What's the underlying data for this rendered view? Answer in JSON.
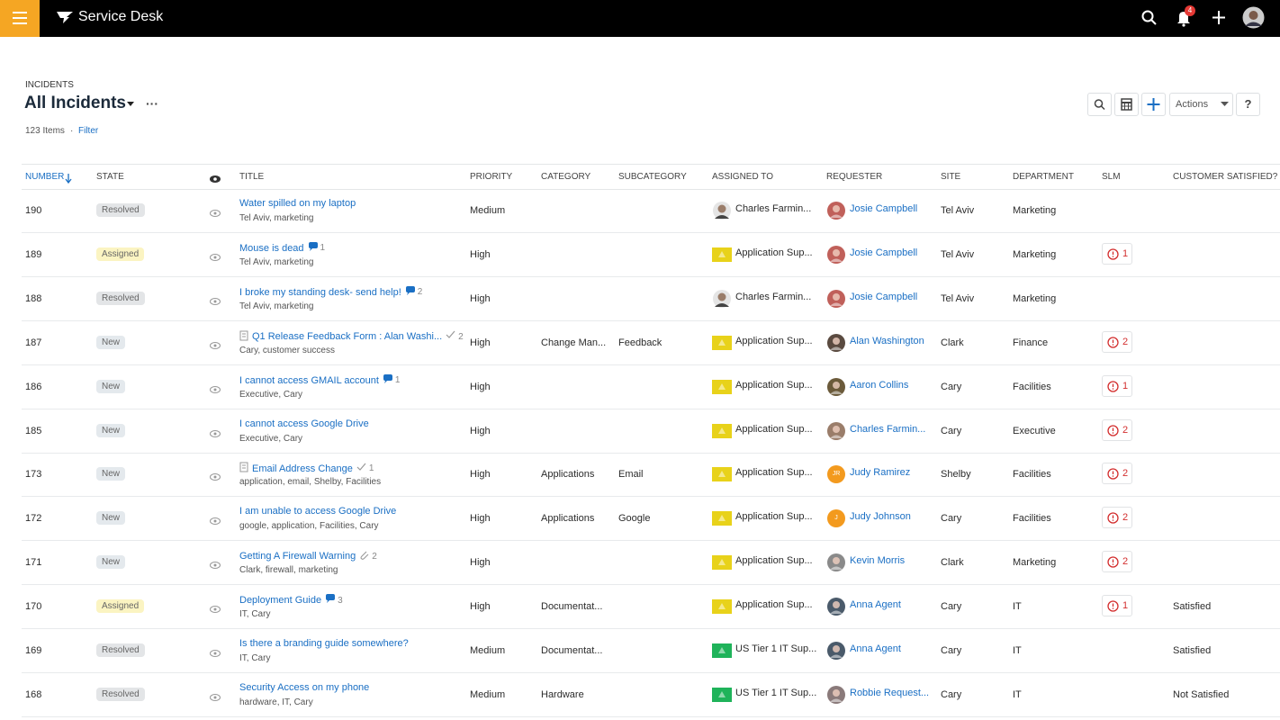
{
  "header": {
    "app_name": "Service Desk",
    "notification_count": "4"
  },
  "breadcrumb": "INCIDENTS",
  "view_title": "All Incidents",
  "more": "···",
  "item_count": "123 Items",
  "separator": "·",
  "filter": "Filter",
  "toolbar": {
    "actions": "Actions",
    "help": "?"
  },
  "table": {
    "columns": [
      "NUMBER",
      "STATE",
      "TITLE",
      "PRIORITY",
      "CATEGORY",
      "SUBCATEGORY",
      "ASSIGNED TO",
      "REQUESTER",
      "SITE",
      "DEPARTMENT",
      "SLM",
      "CUSTOMER SATISFIED?"
    ],
    "rows": [
      {
        "number": "190",
        "state": "Resolved",
        "state_color": "#e3e5e7",
        "title": "Water spilled on my laptop",
        "form": false,
        "badge": null,
        "tags": "Tel Aviv, marketing",
        "priority": "Medium",
        "category": null,
        "subcategory": null,
        "assigned_to": "Charles Farmin...",
        "assigned_icon": {
          "kind": "person",
          "color": "#9a7d6a"
        },
        "requester": "Josie Campbell",
        "requester_avatar": {
          "color": "#c0605a",
          "initials": null
        },
        "site": "Tel Aviv",
        "department": "Marketing",
        "slm": null,
        "customer_satisfied": null
      },
      {
        "number": "189",
        "state": "Assigned",
        "state_color": "#fbf4c2",
        "title": "Mouse is dead",
        "form": false,
        "badge": {
          "icon": "comment",
          "count": "1"
        },
        "tags": "Tel Aviv, marketing",
        "priority": "High",
        "category": null,
        "subcategory": null,
        "assigned_to": "Application Sup...",
        "assigned_icon": {
          "kind": "flag",
          "color": "#e8d21a"
        },
        "requester": "Josie Campbell",
        "requester_avatar": {
          "color": "#c0605a",
          "initials": null
        },
        "site": "Tel Aviv",
        "department": "Marketing",
        "slm": "1",
        "customer_satisfied": null
      },
      {
        "number": "188",
        "state": "Resolved",
        "state_color": "#e3e5e7",
        "title": "I broke my standing desk- send help!",
        "form": false,
        "badge": {
          "icon": "comment",
          "count": "2"
        },
        "tags": "Tel Aviv, marketing",
        "priority": "High",
        "category": null,
        "subcategory": null,
        "assigned_to": "Charles Farmin...",
        "assigned_icon": {
          "kind": "person",
          "color": "#9a7d6a"
        },
        "requester": "Josie Campbell",
        "requester_avatar": {
          "color": "#c0605a",
          "initials": null
        },
        "site": "Tel Aviv",
        "department": "Marketing",
        "slm": null,
        "customer_satisfied": null
      },
      {
        "number": "187",
        "state": "New",
        "state_color": "#e4e9ed",
        "title": "Q1 Release Feedback Form : Alan Washi...",
        "form": true,
        "badge": {
          "icon": "check",
          "count": "2"
        },
        "tags": "Cary, customer success",
        "priority": "High",
        "category": "Change Man...",
        "subcategory": "Feedback",
        "assigned_to": "Application Sup...",
        "assigned_icon": {
          "kind": "flag",
          "color": "#e8d21a"
        },
        "requester": "Alan Washington",
        "requester_avatar": {
          "color": "#5a4a40",
          "initials": null
        },
        "site": "Clark",
        "department": "Finance",
        "slm": "2",
        "customer_satisfied": null
      },
      {
        "number": "186",
        "state": "New",
        "state_color": "#e4e9ed",
        "title": "I cannot access GMAIL account",
        "form": false,
        "badge": {
          "icon": "comment",
          "count": "1"
        },
        "tags": "Executive, Cary",
        "priority": "High",
        "category": null,
        "subcategory": null,
        "assigned_to": "Application Sup...",
        "assigned_icon": {
          "kind": "flag",
          "color": "#e8d21a"
        },
        "requester": "Aaron Collins",
        "requester_avatar": {
          "color": "#6b5a3a",
          "initials": null
        },
        "site": "Cary",
        "department": "Facilities",
        "slm": "1",
        "customer_satisfied": null
      },
      {
        "number": "185",
        "state": "New",
        "state_color": "#e4e9ed",
        "title": "I cannot access Google Drive",
        "form": false,
        "badge": null,
        "tags": "Executive, Cary",
        "priority": "High",
        "category": null,
        "subcategory": null,
        "assigned_to": "Application Sup...",
        "assigned_icon": {
          "kind": "flag",
          "color": "#e8d21a"
        },
        "requester": "Charles Farmin...",
        "requester_avatar": {
          "color": "#9a7d6a",
          "initials": null
        },
        "site": "Cary",
        "department": "Executive",
        "slm": "2",
        "customer_satisfied": null
      },
      {
        "number": "173",
        "state": "New",
        "state_color": "#e4e9ed",
        "title": "Email Address Change",
        "form": true,
        "badge": {
          "icon": "check",
          "count": "1"
        },
        "tags": "application, email, Shelby, Facilities",
        "priority": "High",
        "category": "Applications",
        "subcategory": "Email",
        "assigned_to": "Application Sup...",
        "assigned_icon": {
          "kind": "flag",
          "color": "#e8d21a"
        },
        "requester": "Judy Ramirez",
        "requester_avatar": {
          "color": "#f39a1e",
          "initials": "JR"
        },
        "site": "Shelby",
        "department": "Facilities",
        "slm": "2",
        "customer_satisfied": null
      },
      {
        "number": "172",
        "state": "New",
        "state_color": "#e4e9ed",
        "title": "I am unable to access Google Drive",
        "form": false,
        "badge": null,
        "tags": "google, application, Facilities, Cary",
        "priority": "High",
        "category": "Applications",
        "subcategory": "Google",
        "assigned_to": "Application Sup...",
        "assigned_icon": {
          "kind": "flag",
          "color": "#e8d21a"
        },
        "requester": "Judy Johnson",
        "requester_avatar": {
          "color": "#f39a1e",
          "initials": "J"
        },
        "site": "Cary",
        "department": "Facilities",
        "slm": "2",
        "customer_satisfied": null
      },
      {
        "number": "171",
        "state": "New",
        "state_color": "#e4e9ed",
        "title": "Getting A Firewall Warning",
        "form": false,
        "badge": {
          "icon": "attach",
          "count": "2"
        },
        "tags": "Clark, firewall, marketing",
        "priority": "High",
        "category": null,
        "subcategory": null,
        "assigned_to": "Application Sup...",
        "assigned_icon": {
          "kind": "flag",
          "color": "#e8d21a"
        },
        "requester": "Kevin Morris",
        "requester_avatar": {
          "color": "#8a8a8a",
          "initials": null
        },
        "site": "Clark",
        "department": "Marketing",
        "slm": "2",
        "customer_satisfied": null
      },
      {
        "number": "170",
        "state": "Assigned",
        "state_color": "#fbf4c2",
        "title": "Deployment Guide",
        "form": false,
        "badge": {
          "icon": "comment",
          "count": "3"
        },
        "tags": "IT, Cary",
        "priority": "High",
        "category": "Documentat...",
        "subcategory": null,
        "assigned_to": "Application Sup...",
        "assigned_icon": {
          "kind": "flag",
          "color": "#e8d21a"
        },
        "requester": "Anna Agent",
        "requester_avatar": {
          "color": "#4a5a6a",
          "initials": null
        },
        "site": "Cary",
        "department": "IT",
        "slm": "1",
        "customer_satisfied": "Satisfied"
      },
      {
        "number": "169",
        "state": "Resolved",
        "state_color": "#e3e5e7",
        "title": "Is there a branding guide somewhere?",
        "form": false,
        "badge": null,
        "tags": "IT, Cary",
        "priority": "Medium",
        "category": "Documentat...",
        "subcategory": null,
        "assigned_to": "US Tier 1 IT Sup...",
        "assigned_icon": {
          "kind": "flag",
          "color": "#1fb35a"
        },
        "requester": "Anna Agent",
        "requester_avatar": {
          "color": "#4a5a6a",
          "initials": null
        },
        "site": "Cary",
        "department": "IT",
        "slm": null,
        "customer_satisfied": "Satisfied"
      },
      {
        "number": "168",
        "state": "Resolved",
        "state_color": "#e3e5e7",
        "title": "Security Access on my phone",
        "form": false,
        "badge": null,
        "tags": "hardware, IT, Cary",
        "priority": "Medium",
        "category": "Hardware",
        "subcategory": null,
        "assigned_to": "US Tier 1 IT Sup...",
        "assigned_icon": {
          "kind": "flag",
          "color": "#1fb35a"
        },
        "requester": "Robbie Request...",
        "requester_avatar": {
          "color": "#8a7a7a",
          "initials": null
        },
        "site": "Cary",
        "department": "IT",
        "slm": null,
        "customer_satisfied": "Not Satisfied"
      }
    ]
  }
}
